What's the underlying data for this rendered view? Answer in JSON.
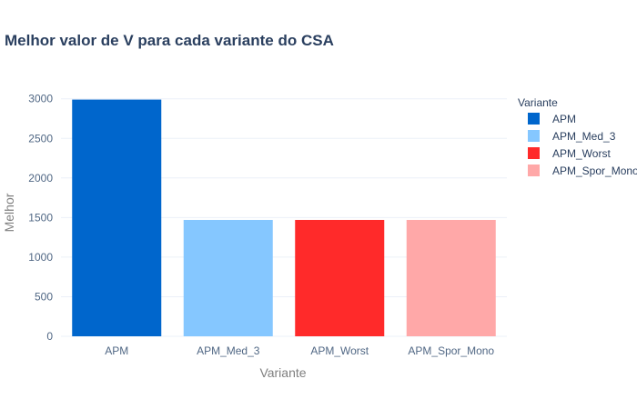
{
  "chart_data": {
    "type": "bar",
    "title": "Melhor valor de V para cada variante do CSA",
    "xlabel": "Variante",
    "ylabel": "Melhor",
    "categories": [
      "APM",
      "APM_Med_3",
      "APM_Worst",
      "APM_Spor_Mono"
    ],
    "values": [
      2990,
      1470,
      1470,
      1470
    ],
    "colors": [
      "#0066cc",
      "#85c7ff",
      "#ff2a2a",
      "#ffa8a8"
    ],
    "ylim": [
      0,
      3100
    ],
    "yticks": [
      0,
      500,
      1000,
      1500,
      2000,
      2500,
      3000
    ],
    "grid": true,
    "legend": {
      "title": "Variante",
      "placement": "right",
      "entries": [
        "APM",
        "APM_Med_3",
        "APM_Worst",
        "APM_Spor_Mono"
      ]
    }
  }
}
